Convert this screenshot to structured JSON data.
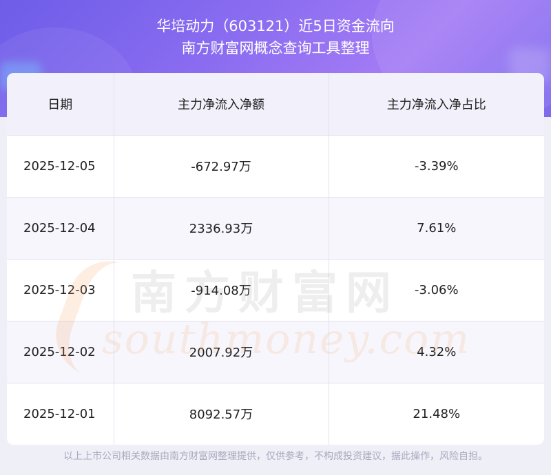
{
  "header": {
    "title_line1": "华培动力（603121）近5日资金流向",
    "title_line2": "南方财富网概念查询工具整理"
  },
  "table": {
    "columns": [
      "日期",
      "主力净流入净额",
      "主力净流入净占比"
    ],
    "rows": [
      {
        "date": "2025-12-05",
        "net_inflow": "-672.97万",
        "ratio": "-3.39%"
      },
      {
        "date": "2025-12-04",
        "net_inflow": "2336.93万",
        "ratio": "7.61%"
      },
      {
        "date": "2025-12-03",
        "net_inflow": "-914.08万",
        "ratio": "-3.06%"
      },
      {
        "date": "2025-12-02",
        "net_inflow": "2007.92万",
        "ratio": "4.32%"
      },
      {
        "date": "2025-12-01",
        "net_inflow": "8092.57万",
        "ratio": "21.48%"
      }
    ]
  },
  "watermark": {
    "cn": "南方财富网",
    "en": "southmoney.com"
  },
  "footer": {
    "disclaimer": "以上上市公司相关数据由南方财富网整理提供，仅供参考，不构成投资建议，据此操作，风险自担。"
  }
}
